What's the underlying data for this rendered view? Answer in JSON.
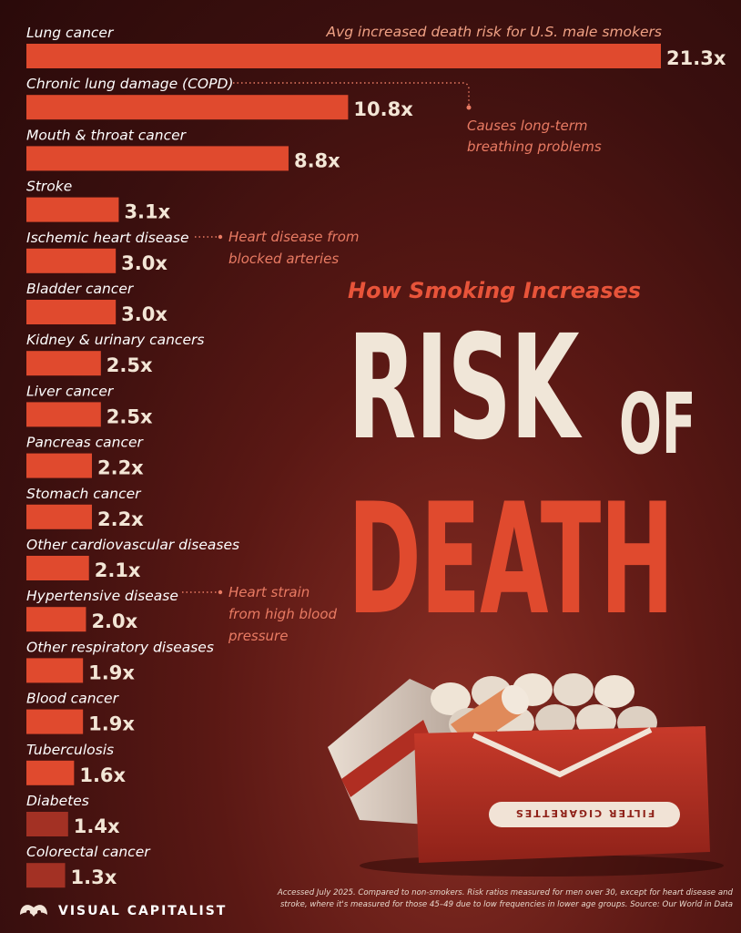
{
  "subtitle": "How Smoking Increases",
  "title_word_1": "RISK",
  "title_word_2": "OF",
  "title_word_3": "DEATH",
  "header_note": "Avg increased death risk for U.S. male smokers",
  "annotations": {
    "copd": "Causes long-term breathing problems",
    "copd_lines": [
      "Causes long-term",
      "breathing problems"
    ],
    "ischemic": "Heart disease from blocked arteries",
    "ischemic_lines": [
      "Heart disease from",
      "blocked arteries"
    ],
    "hypertensive": "Heart strain from high blood pressure",
    "hypertensive_lines": [
      "Heart strain",
      "from high blood",
      "pressure"
    ]
  },
  "pack_text": "FILTER CIGARETTES",
  "footnote": "Accessed July 2025. Compared to non-smokers. Risk ratios measured for men over 30, except for heart disease and stroke, where it's measured for those 45–49 due to low frequencies in lower age groups. Source: Our World in Data",
  "brand": "VISUAL CAPITALIST",
  "colors": {
    "bar": "#e04a2e",
    "bar_dark": "#a33124",
    "title_cream": "#f0e6d8",
    "accent": "#e8543a",
    "background": "#3a0f0e"
  },
  "chart_data": {
    "type": "bar",
    "orientation": "horizontal",
    "unit_suffix": "x",
    "categories": [
      "Lung cancer",
      "Chronic lung damage (COPD)",
      "Mouth & throat cancer",
      "Stroke",
      "Ischemic heart disease",
      "Bladder cancer",
      "Kidney & urinary cancers",
      "Liver cancer",
      "Pancreas cancer",
      "Stomach cancer",
      "Other cardiovascular diseases",
      "Hypertensive disease",
      "Other respiratory diseases",
      "Blood cancer",
      "Tuberculosis",
      "Diabetes",
      "Colorectal cancer"
    ],
    "values": [
      21.3,
      10.8,
      8.8,
      3.1,
      3.0,
      3.0,
      2.5,
      2.5,
      2.2,
      2.2,
      2.1,
      2.0,
      1.9,
      1.9,
      1.6,
      1.4,
      1.3
    ],
    "value_labels": [
      "21.3x",
      "10.8x",
      "8.8x",
      "3.1x",
      "3.0x",
      "3.0x",
      "2.5x",
      "2.5x",
      "2.2x",
      "2.2x",
      "2.1x",
      "2.0x",
      "1.9x",
      "1.9x",
      "1.6x",
      "1.4x",
      "1.3x"
    ],
    "title": "How Smoking Increases RISK OF DEATH",
    "xlim": [
      0,
      21.3
    ]
  }
}
